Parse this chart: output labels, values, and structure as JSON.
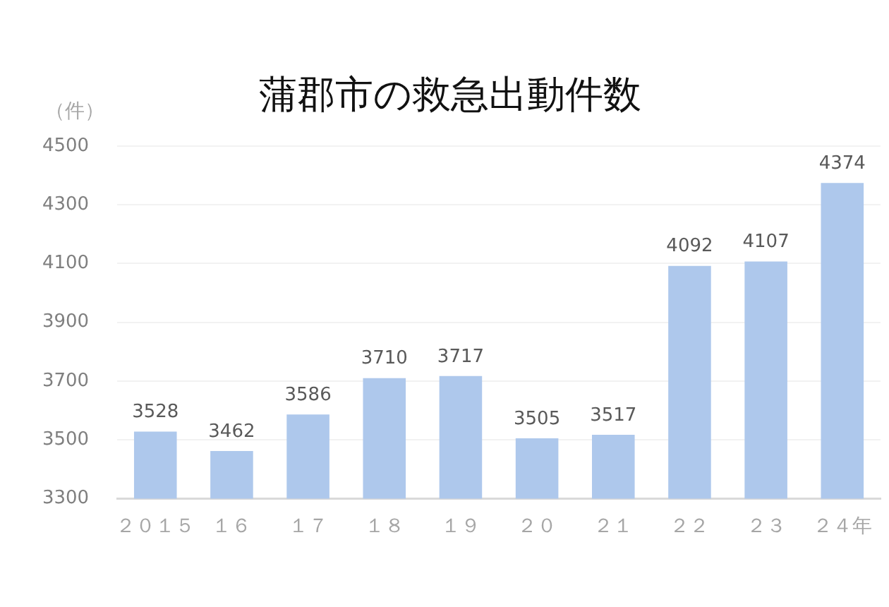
{
  "chart_data": {
    "type": "bar",
    "title": "蒲郡市の救急出動件数",
    "ylabel": "（件）",
    "categories": [
      "２０１５",
      "１６",
      "１７",
      "１８",
      "１９",
      "２０",
      "２１",
      "２２",
      "２３",
      "２４年"
    ],
    "values": [
      3528,
      3462,
      3586,
      3710,
      3717,
      3505,
      3517,
      4092,
      4107,
      4374
    ],
    "color": "#aec8ec",
    "ylim": [
      3300,
      4500
    ],
    "yticks": [
      3300,
      3500,
      3700,
      3900,
      4100,
      4300,
      4500
    ],
    "grid": "y",
    "data_labels": true,
    "legend": false
  }
}
